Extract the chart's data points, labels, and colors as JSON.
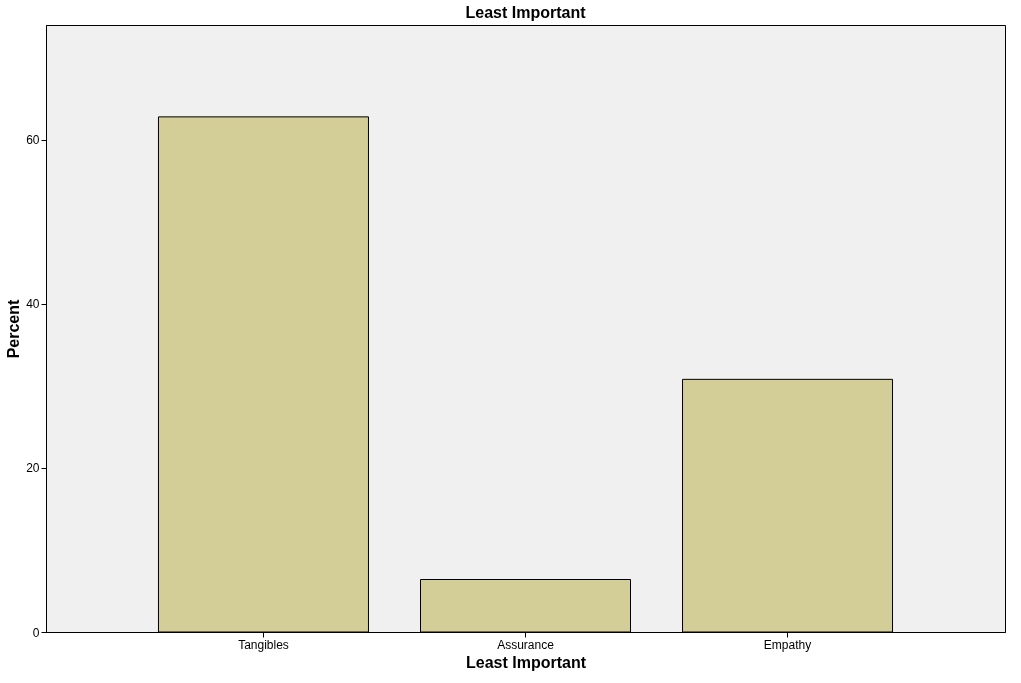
{
  "chart_data": {
    "type": "bar",
    "title": "Least Important",
    "xlabel": "Least Important",
    "ylabel": "Percent",
    "categories": [
      "Tangibles",
      "Assurance",
      "Empathy"
    ],
    "values": [
      62.8,
      6.4,
      30.8
    ],
    "color": "#d3ce97",
    "ylim": [
      0,
      74
    ],
    "yticks": [
      0,
      20,
      40,
      60
    ],
    "grid": false
  }
}
